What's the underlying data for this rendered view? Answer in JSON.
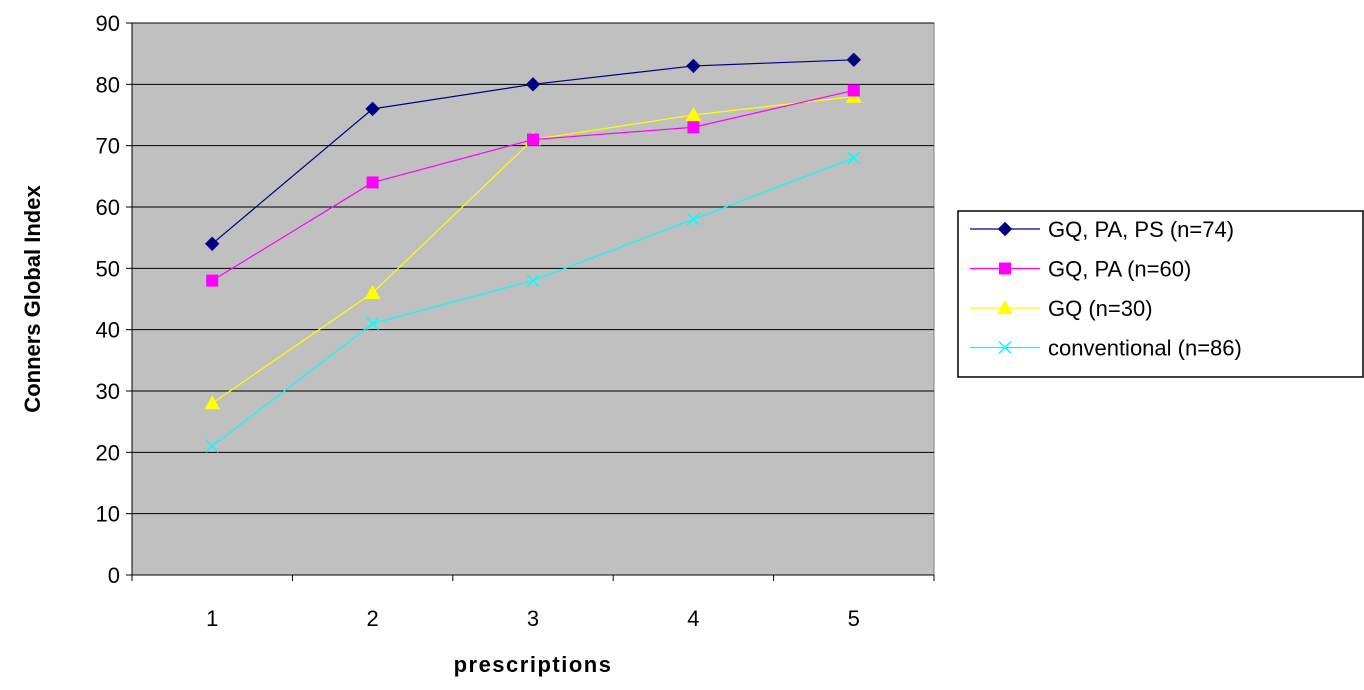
{
  "chart_data": {
    "type": "line",
    "title": "",
    "xlabel": "prescriptions",
    "ylabel": "Conners Global Index",
    "categories": [
      "1",
      "2",
      "3",
      "4",
      "5"
    ],
    "ylim": [
      0,
      90
    ],
    "yticks": [
      0,
      10,
      20,
      30,
      40,
      50,
      60,
      70,
      80,
      90
    ],
    "grid": "horizontal",
    "plot_background": "#c0c0c0",
    "legend_position": "right",
    "series": [
      {
        "name": "GQ, PA, PS (n=74)",
        "values": [
          54,
          76,
          80,
          83,
          84
        ],
        "color": "#000080",
        "marker": "diamond"
      },
      {
        "name": "GQ, PA (n=60)",
        "values": [
          48,
          64,
          71,
          73,
          79
        ],
        "color": "#ff00ff",
        "marker": "square"
      },
      {
        "name": "GQ (n=30)",
        "values": [
          28,
          46,
          71,
          75,
          78
        ],
        "color": "#ffff00",
        "marker": "triangle"
      },
      {
        "name": "conventional (n=86)",
        "values": [
          21,
          41,
          48,
          58,
          68
        ],
        "color": "#00ffff",
        "marker": "x"
      }
    ]
  }
}
